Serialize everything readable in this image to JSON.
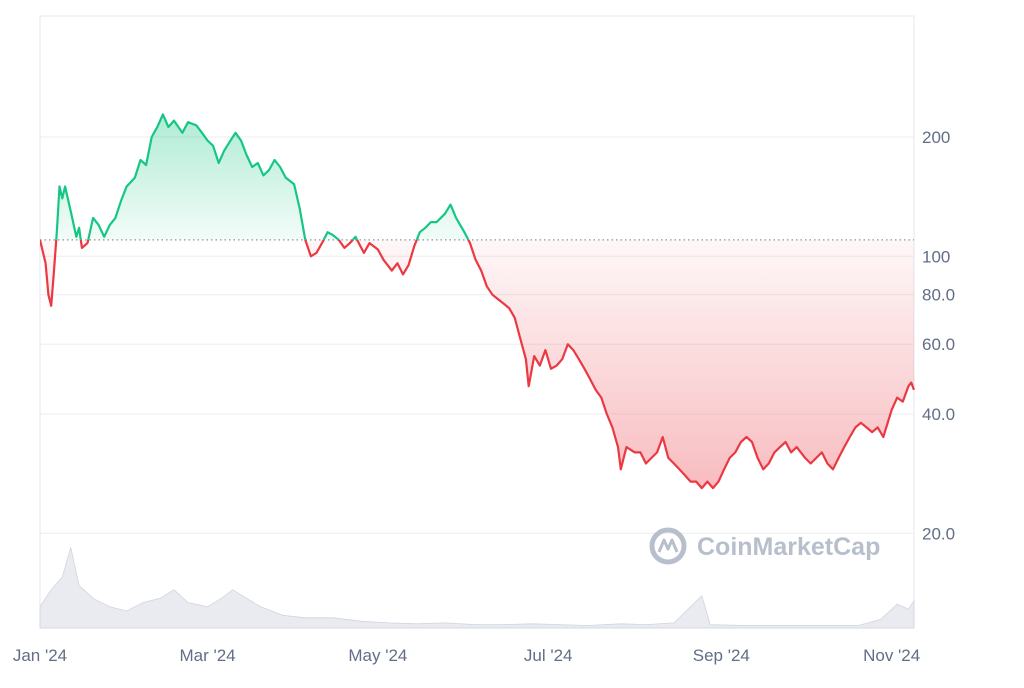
{
  "chart_data": {
    "type": "area",
    "y_scale": "log",
    "ylim": [
      14,
      400
    ],
    "baseline": 110,
    "up_color": "#16c784",
    "down_color": "#ea3943",
    "y_ticks": [
      {
        "value": 200,
        "label": "200"
      },
      {
        "value": 100,
        "label": "100"
      },
      {
        "value": 80,
        "label": "80.0"
      },
      {
        "value": 60,
        "label": "60.0"
      },
      {
        "value": 40,
        "label": "40.0"
      },
      {
        "value": 20,
        "label": "20.0"
      }
    ],
    "x_ticks": [
      {
        "date": "2024-01-01",
        "label": "Jan '24"
      },
      {
        "date": "2024-03-01",
        "label": "Mar '24"
      },
      {
        "date": "2024-05-01",
        "label": "May '24"
      },
      {
        "date": "2024-07-01",
        "label": "Jul '24"
      },
      {
        "date": "2024-09-01",
        "label": "Sep '24"
      },
      {
        "date": "2024-11-01",
        "label": "Nov '24"
      }
    ],
    "price": [
      [
        "2024-01-01",
        110
      ],
      [
        "2024-01-03",
        96
      ],
      [
        "2024-01-04",
        80
      ],
      [
        "2024-01-05",
        75
      ],
      [
        "2024-01-06",
        92
      ],
      [
        "2024-01-07",
        115
      ],
      [
        "2024-01-08",
        150
      ],
      [
        "2024-01-09",
        140
      ],
      [
        "2024-01-10",
        150
      ],
      [
        "2024-01-12",
        130
      ],
      [
        "2024-01-14",
        112
      ],
      [
        "2024-01-15",
        118
      ],
      [
        "2024-01-16",
        105
      ],
      [
        "2024-01-18",
        108
      ],
      [
        "2024-01-20",
        125
      ],
      [
        "2024-01-22",
        120
      ],
      [
        "2024-01-24",
        112
      ],
      [
        "2024-01-26",
        120
      ],
      [
        "2024-01-28",
        125
      ],
      [
        "2024-01-30",
        138
      ],
      [
        "2024-02-01",
        150
      ],
      [
        "2024-02-04",
        158
      ],
      [
        "2024-02-06",
        175
      ],
      [
        "2024-02-08",
        170
      ],
      [
        "2024-02-10",
        200
      ],
      [
        "2024-02-12",
        212
      ],
      [
        "2024-02-14",
        228
      ],
      [
        "2024-02-16",
        212
      ],
      [
        "2024-02-18",
        220
      ],
      [
        "2024-02-21",
        205
      ],
      [
        "2024-02-23",
        218
      ],
      [
        "2024-02-26",
        214
      ],
      [
        "2024-02-28",
        205
      ],
      [
        "2024-03-01",
        196
      ],
      [
        "2024-03-03",
        190
      ],
      [
        "2024-03-05",
        172
      ],
      [
        "2024-03-07",
        185
      ],
      [
        "2024-03-09",
        195
      ],
      [
        "2024-03-11",
        205
      ],
      [
        "2024-03-13",
        196
      ],
      [
        "2024-03-15",
        180
      ],
      [
        "2024-03-17",
        168
      ],
      [
        "2024-03-19",
        172
      ],
      [
        "2024-03-21",
        160
      ],
      [
        "2024-03-23",
        165
      ],
      [
        "2024-03-25",
        175
      ],
      [
        "2024-03-27",
        168
      ],
      [
        "2024-03-29",
        158
      ],
      [
        "2024-04-01",
        152
      ],
      [
        "2024-04-03",
        132
      ],
      [
        "2024-04-05",
        110
      ],
      [
        "2024-04-07",
        100
      ],
      [
        "2024-04-09",
        102
      ],
      [
        "2024-04-11",
        108
      ],
      [
        "2024-04-13",
        115
      ],
      [
        "2024-04-15",
        113
      ],
      [
        "2024-04-17",
        110
      ],
      [
        "2024-04-19",
        105
      ],
      [
        "2024-04-21",
        108
      ],
      [
        "2024-04-23",
        112
      ],
      [
        "2024-04-26",
        102
      ],
      [
        "2024-04-28",
        108
      ],
      [
        "2024-05-01",
        104
      ],
      [
        "2024-05-03",
        98
      ],
      [
        "2024-05-06",
        92
      ],
      [
        "2024-05-08",
        96
      ],
      [
        "2024-05-10",
        90
      ],
      [
        "2024-05-12",
        95
      ],
      [
        "2024-05-14",
        106
      ],
      [
        "2024-05-16",
        115
      ],
      [
        "2024-05-18",
        118
      ],
      [
        "2024-05-20",
        122
      ],
      [
        "2024-05-22",
        122
      ],
      [
        "2024-05-25",
        128
      ],
      [
        "2024-05-27",
        135
      ],
      [
        "2024-05-29",
        125
      ],
      [
        "2024-06-01",
        115
      ],
      [
        "2024-06-03",
        108
      ],
      [
        "2024-06-05",
        98
      ],
      [
        "2024-06-07",
        92
      ],
      [
        "2024-06-09",
        84
      ],
      [
        "2024-06-11",
        80
      ],
      [
        "2024-06-13",
        78
      ],
      [
        "2024-06-15",
        76
      ],
      [
        "2024-06-17",
        74
      ],
      [
        "2024-06-19",
        70
      ],
      [
        "2024-06-21",
        62
      ],
      [
        "2024-06-23",
        55
      ],
      [
        "2024-06-24",
        47
      ],
      [
        "2024-06-26",
        56
      ],
      [
        "2024-06-28",
        53
      ],
      [
        "2024-06-30",
        58
      ],
      [
        "2024-07-02",
        52
      ],
      [
        "2024-07-04",
        53
      ],
      [
        "2024-07-06",
        55
      ],
      [
        "2024-07-08",
        60
      ],
      [
        "2024-07-10",
        58
      ],
      [
        "2024-07-12",
        55
      ],
      [
        "2024-07-14",
        52
      ],
      [
        "2024-07-16",
        49
      ],
      [
        "2024-07-18",
        46
      ],
      [
        "2024-07-20",
        44
      ],
      [
        "2024-07-22",
        40
      ],
      [
        "2024-07-24",
        37
      ],
      [
        "2024-07-26",
        33
      ],
      [
        "2024-07-27",
        29
      ],
      [
        "2024-07-29",
        33
      ],
      [
        "2024-08-01",
        32
      ],
      [
        "2024-08-03",
        32
      ],
      [
        "2024-08-05",
        30
      ],
      [
        "2024-08-07",
        31
      ],
      [
        "2024-08-09",
        32
      ],
      [
        "2024-08-11",
        35
      ],
      [
        "2024-08-13",
        31
      ],
      [
        "2024-08-15",
        30
      ],
      [
        "2024-08-17",
        29
      ],
      [
        "2024-08-19",
        28
      ],
      [
        "2024-08-21",
        27
      ],
      [
        "2024-08-23",
        27
      ],
      [
        "2024-08-25",
        26
      ],
      [
        "2024-08-27",
        27
      ],
      [
        "2024-08-29",
        26
      ],
      [
        "2024-08-31",
        27
      ],
      [
        "2024-09-02",
        29
      ],
      [
        "2024-09-04",
        31
      ],
      [
        "2024-09-06",
        32
      ],
      [
        "2024-09-08",
        34
      ],
      [
        "2024-09-10",
        35
      ],
      [
        "2024-09-12",
        34
      ],
      [
        "2024-09-14",
        31
      ],
      [
        "2024-09-16",
        29
      ],
      [
        "2024-09-18",
        30
      ],
      [
        "2024-09-20",
        32
      ],
      [
        "2024-09-22",
        33
      ],
      [
        "2024-09-24",
        34
      ],
      [
        "2024-09-26",
        32
      ],
      [
        "2024-09-28",
        33
      ],
      [
        "2024-10-01",
        31
      ],
      [
        "2024-10-03",
        30
      ],
      [
        "2024-10-05",
        31
      ],
      [
        "2024-10-07",
        32
      ],
      [
        "2024-10-09",
        30
      ],
      [
        "2024-10-11",
        29
      ],
      [
        "2024-10-13",
        31
      ],
      [
        "2024-10-15",
        33
      ],
      [
        "2024-10-17",
        35
      ],
      [
        "2024-10-19",
        37
      ],
      [
        "2024-10-21",
        38
      ],
      [
        "2024-10-23",
        37
      ],
      [
        "2024-10-25",
        36
      ],
      [
        "2024-10-27",
        37
      ],
      [
        "2024-10-29",
        35
      ],
      [
        "2024-11-01",
        41
      ],
      [
        "2024-11-03",
        44
      ],
      [
        "2024-11-05",
        43
      ],
      [
        "2024-11-07",
        47
      ],
      [
        "2024-11-08",
        48
      ],
      [
        "2024-11-09",
        46
      ]
    ],
    "volume": [
      [
        "2024-01-01",
        0.25
      ],
      [
        "2024-01-05",
        0.45
      ],
      [
        "2024-01-09",
        0.6
      ],
      [
        "2024-01-12",
        0.95
      ],
      [
        "2024-01-15",
        0.5
      ],
      [
        "2024-01-20",
        0.35
      ],
      [
        "2024-01-26",
        0.25
      ],
      [
        "2024-02-01",
        0.2
      ],
      [
        "2024-02-07",
        0.3
      ],
      [
        "2024-02-13",
        0.35
      ],
      [
        "2024-02-18",
        0.45
      ],
      [
        "2024-02-23",
        0.3
      ],
      [
        "2024-03-01",
        0.25
      ],
      [
        "2024-03-06",
        0.35
      ],
      [
        "2024-03-10",
        0.45
      ],
      [
        "2024-03-15",
        0.35
      ],
      [
        "2024-03-20",
        0.25
      ],
      [
        "2024-03-28",
        0.15
      ],
      [
        "2024-04-05",
        0.12
      ],
      [
        "2024-04-15",
        0.12
      ],
      [
        "2024-04-25",
        0.08
      ],
      [
        "2024-05-05",
        0.06
      ],
      [
        "2024-05-15",
        0.05
      ],
      [
        "2024-05-25",
        0.06
      ],
      [
        "2024-06-05",
        0.04
      ],
      [
        "2024-06-15",
        0.04
      ],
      [
        "2024-06-25",
        0.05
      ],
      [
        "2024-07-05",
        0.04
      ],
      [
        "2024-07-15",
        0.03
      ],
      [
        "2024-07-27",
        0.05
      ],
      [
        "2024-08-05",
        0.04
      ],
      [
        "2024-08-15",
        0.06
      ],
      [
        "2024-08-25",
        0.38
      ],
      [
        "2024-08-28",
        0.04
      ],
      [
        "2024-09-10",
        0.03
      ],
      [
        "2024-09-25",
        0.03
      ],
      [
        "2024-10-10",
        0.03
      ],
      [
        "2024-10-20",
        0.03
      ],
      [
        "2024-10-28",
        0.1
      ],
      [
        "2024-11-03",
        0.28
      ],
      [
        "2024-11-07",
        0.22
      ],
      [
        "2024-11-09",
        0.32
      ]
    ]
  },
  "watermark": {
    "text": "CoinMarketCap",
    "icon": "coinmarketcap-logo-icon"
  }
}
